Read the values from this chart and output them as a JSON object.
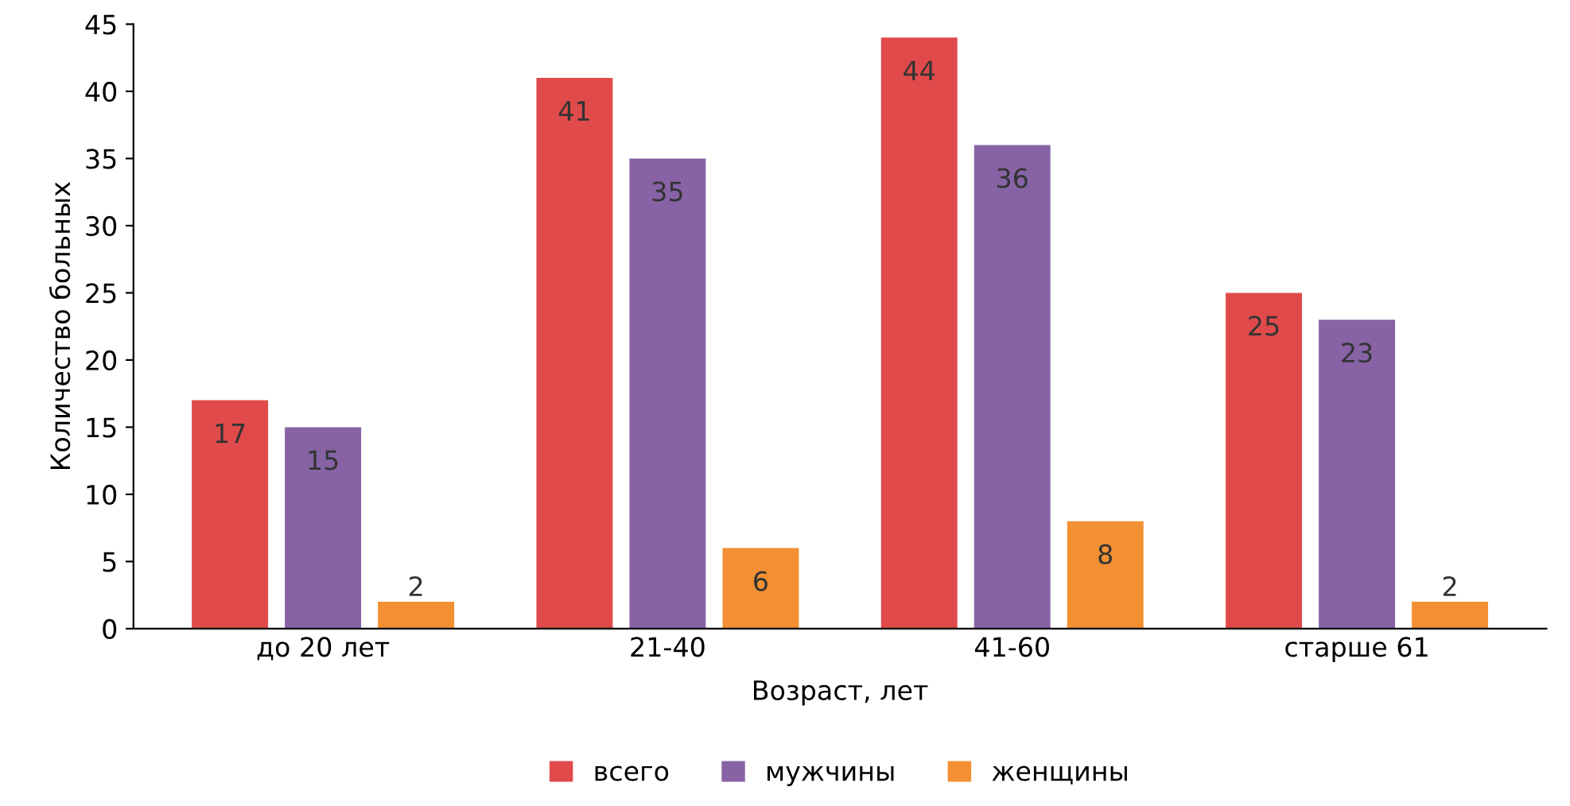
{
  "chart_data": {
    "type": "bar",
    "categories": [
      "до 20 лет",
      "21-40",
      "41-60",
      "старше 61"
    ],
    "series": [
      {
        "name": "всего",
        "color": "#e04a4a",
        "values": [
          17,
          41,
          44,
          25
        ]
      },
      {
        "name": "мужчины",
        "color": "#8763a6",
        "values": [
          15,
          35,
          36,
          23
        ]
      },
      {
        "name": "женщины",
        "color": "#f39033",
        "values": [
          2,
          6,
          8,
          2
        ]
      }
    ],
    "xlabel": "Возраст, лет",
    "ylabel": "Количество больных",
    "ylim": [
      0,
      45
    ],
    "yticks": [
      0,
      5,
      10,
      15,
      20,
      25,
      30,
      35,
      40,
      45
    ],
    "grid": false,
    "legend": "bottom",
    "data_labels": true
  }
}
